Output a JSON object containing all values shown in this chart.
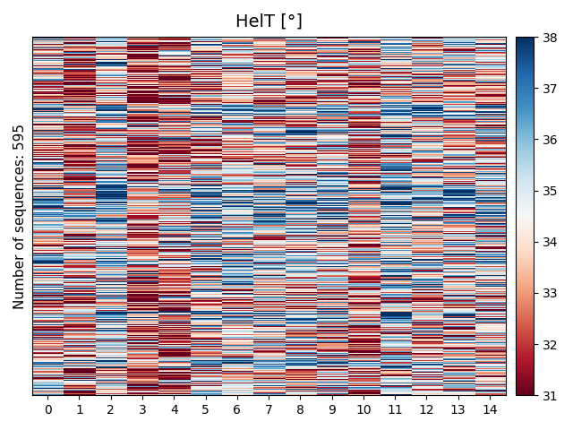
{
  "title": "HelT [°]",
  "ylabel": "Number of sequences: 595",
  "xlabel": "",
  "n_rows": 595,
  "n_cols": 15,
  "vmin": 31,
  "vmax": 38,
  "cbar_ticks": [
    31,
    32,
    33,
    34,
    35,
    36,
    37,
    38
  ],
  "xtick_labels": [
    "0",
    "1",
    "2",
    "3",
    "4",
    "5",
    "6",
    "7",
    "8",
    "9",
    "10",
    "11",
    "12",
    "13",
    "14"
  ],
  "colormap": "RdBu",
  "seed": 42,
  "figsize": [
    6.4,
    4.8
  ],
  "dpi": 100,
  "col_means": [
    34.5,
    33.0,
    35.0,
    32.5,
    33.0,
    34.5,
    34.8,
    34.5,
    34.5,
    34.8,
    33.2,
    35.5,
    34.5,
    34.5,
    34.5
  ],
  "col_stds": [
    2.2,
    2.5,
    2.0,
    2.5,
    2.5,
    2.0,
    1.8,
    2.0,
    2.0,
    2.0,
    2.5,
    2.0,
    2.0,
    2.0,
    2.0
  ]
}
